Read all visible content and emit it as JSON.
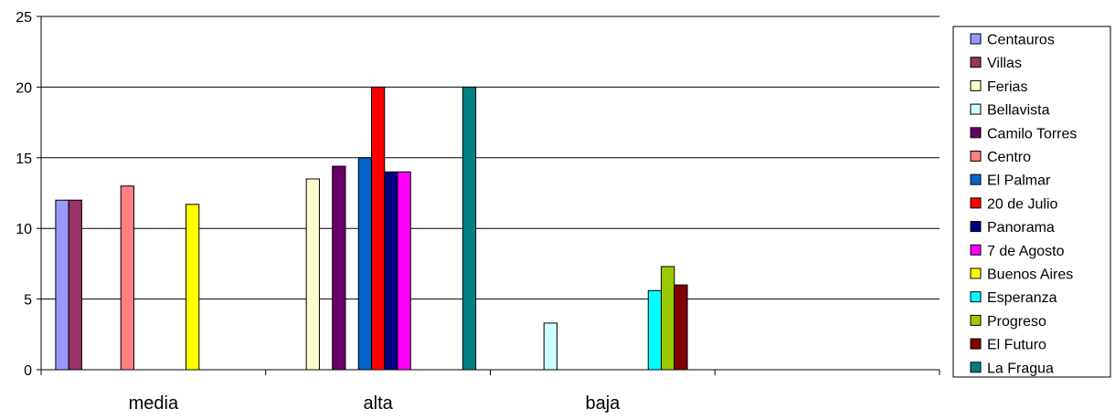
{
  "chart_data": {
    "type": "bar",
    "categories": [
      "media",
      "alta",
      "baja",
      ""
    ],
    "ylim": [
      0,
      25
    ],
    "yticks": [
      0,
      5,
      10,
      15,
      20,
      25
    ],
    "grid": true,
    "legend_position": "right",
    "title": "",
    "xlabel": "",
    "ylabel": "",
    "series": [
      {
        "name": "Centauros",
        "color": "#9999FF",
        "values": [
          12,
          null,
          null,
          null
        ]
      },
      {
        "name": "Villas",
        "color": "#993366",
        "values": [
          12,
          null,
          null,
          null
        ]
      },
      {
        "name": "Ferias",
        "color": "#FFFFCC",
        "values": [
          null,
          13.5,
          null,
          null
        ]
      },
      {
        "name": "Bellavista",
        "color": "#CCFFFF",
        "values": [
          null,
          null,
          3.3,
          null
        ]
      },
      {
        "name": "Camilo Torres",
        "color": "#660066",
        "values": [
          null,
          14.4,
          null,
          null
        ]
      },
      {
        "name": "Centro",
        "color": "#FF8080",
        "values": [
          13,
          null,
          null,
          null
        ]
      },
      {
        "name": "El Palmar",
        "color": "#0066CC",
        "values": [
          null,
          15,
          null,
          null
        ]
      },
      {
        "name": "20 de Julio",
        "color": "#FF0000",
        "values": [
          null,
          20,
          null,
          null
        ]
      },
      {
        "name": "Panorama",
        "color": "#000080",
        "values": [
          null,
          14,
          null,
          null
        ]
      },
      {
        "name": "7 de Agosto",
        "color": "#FF00FF",
        "values": [
          null,
          14,
          null,
          null
        ]
      },
      {
        "name": "Buenos Aires",
        "color": "#FFFF00",
        "values": [
          11.7,
          null,
          null,
          null
        ]
      },
      {
        "name": "Esperanza",
        "color": "#00FFFF",
        "values": [
          null,
          null,
          5.6,
          null
        ]
      },
      {
        "name": "Progreso",
        "color": "#99CC00",
        "values": [
          null,
          null,
          7.3,
          null
        ]
      },
      {
        "name": "El Futuro",
        "color": "#800000",
        "values": [
          null,
          null,
          6,
          null
        ]
      },
      {
        "name": "La Fragua",
        "color": "#008080",
        "values": [
          null,
          20,
          null,
          null
        ]
      }
    ]
  }
}
